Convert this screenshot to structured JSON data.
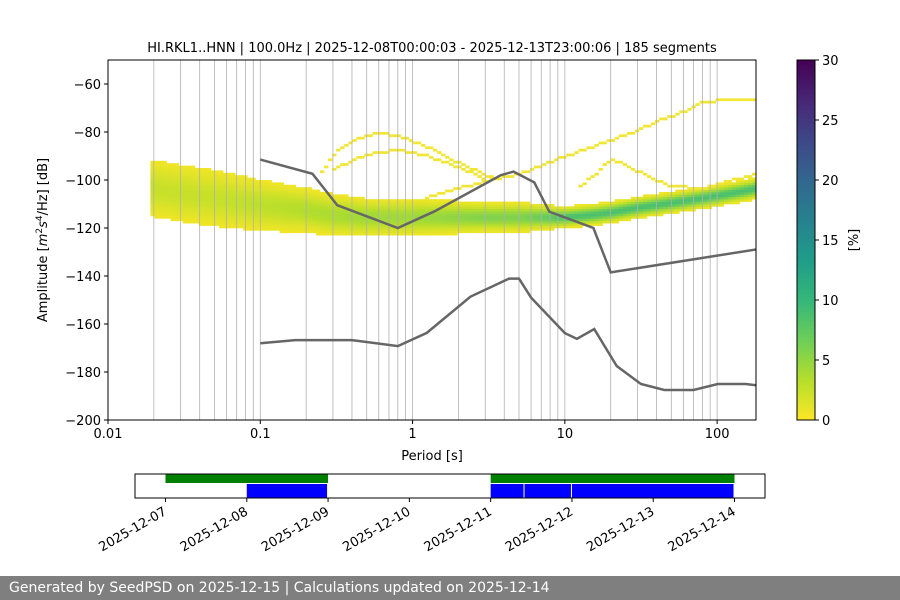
{
  "chart_data": {
    "type": "heatmap",
    "title": "HI.RKL1..HNN | 100.0Hz | 2025-12-08T00:00:03 - 2025-12-13T23:00:06 | 185 segments",
    "xlabel": "Period [s]",
    "ylabel_parts": {
      "pre": "Amplitude [",
      "m": "m",
      "s": "s",
      "hz": "/Hz] [dB]",
      "sup2": "2",
      "sup4": "4"
    },
    "x_scale": "log",
    "xlim": [
      0.01,
      180
    ],
    "ylim": [
      -200,
      -50
    ],
    "x_ticks": [
      0.01,
      0.1,
      1,
      10,
      100
    ],
    "x_tick_labels": [
      "0.01",
      "0.1",
      "1",
      "10",
      "100"
    ],
    "y_ticks": [
      -200,
      -180,
      -160,
      -140,
      -120,
      -100,
      -80,
      -60
    ],
    "y_tick_labels": [
      "−200",
      "−180",
      "−160",
      "−140",
      "−120",
      "−100",
      "−80",
      "−60"
    ],
    "grid": "vertical",
    "colorbar": {
      "label": "[%]",
      "min": 0,
      "max": 30,
      "ticks": [
        0,
        5,
        10,
        15,
        20,
        25,
        30
      ],
      "tick_labels": [
        "0",
        "5",
        "10",
        "15",
        "20",
        "25",
        "30"
      ],
      "colormap": [
        "#fde725",
        "#b5de2b",
        "#6ece58",
        "#35b779",
        "#1f9e89",
        "#26828e",
        "#31688e",
        "#3e4989",
        "#482878",
        "#440154"
      ]
    },
    "mode_curve": [
      [
        0.02,
        -104
      ],
      [
        0.03,
        -106
      ],
      [
        0.05,
        -108
      ],
      [
        0.08,
        -110
      ],
      [
        0.1,
        -111
      ],
      [
        0.2,
        -113
      ],
      [
        0.3,
        -115
      ],
      [
        0.5,
        -116
      ],
      [
        1,
        -116
      ],
      [
        2,
        -116
      ],
      [
        3,
        -116
      ],
      [
        5,
        -116
      ],
      [
        8,
        -116
      ],
      [
        10,
        -116
      ],
      [
        15,
        -115
      ],
      [
        20,
        -114
      ],
      [
        30,
        -112
      ],
      [
        50,
        -110
      ],
      [
        80,
        -108
      ],
      [
        100,
        -107
      ],
      [
        150,
        -105
      ],
      [
        180,
        -104
      ]
    ],
    "spread_curve": [
      [
        0.02,
        7
      ],
      [
        0.03,
        7
      ],
      [
        0.05,
        7
      ],
      [
        0.1,
        6
      ],
      [
        0.2,
        5
      ],
      [
        0.5,
        4
      ],
      [
        1,
        4
      ],
      [
        3,
        3
      ],
      [
        5,
        3
      ],
      [
        10,
        2
      ],
      [
        30,
        2
      ],
      [
        100,
        2
      ],
      [
        180,
        2
      ]
    ],
    "upper_branches": [
      [
        [
          0.25,
          -98
        ],
        [
          0.3,
          -90
        ],
        [
          0.4,
          -84
        ],
        [
          0.6,
          -81
        ],
        [
          0.8,
          -82
        ],
        [
          1.2,
          -86
        ],
        [
          1.8,
          -92
        ],
        [
          2.5,
          -96
        ],
        [
          3.5,
          -100
        ]
      ],
      [
        [
          0.3,
          -96
        ],
        [
          0.5,
          -90
        ],
        [
          0.8,
          -88
        ],
        [
          1.2,
          -90
        ],
        [
          2,
          -95
        ],
        [
          3,
          -100
        ]
      ],
      [
        [
          1.2,
          -108
        ],
        [
          2,
          -104
        ],
        [
          3,
          -101
        ],
        [
          5,
          -98
        ],
        [
          8,
          -93
        ],
        [
          12,
          -89
        ],
        [
          20,
          -84
        ],
        [
          30,
          -80
        ],
        [
          40,
          -76
        ],
        [
          60,
          -72
        ],
        [
          80,
          -68
        ],
        [
          120,
          -67
        ],
        [
          180,
          -67
        ]
      ],
      [
        [
          12,
          -104
        ],
        [
          16,
          -98
        ],
        [
          20,
          -92
        ],
        [
          25,
          -94
        ],
        [
          35,
          -99
        ],
        [
          50,
          -103
        ],
        [
          80,
          -104
        ],
        [
          120,
          -101
        ],
        [
          180,
          -98
        ]
      ]
    ],
    "high_noise_model": [
      [
        0.1,
        -91.5
      ],
      [
        0.22,
        -97.4
      ],
      [
        0.32,
        -110.5
      ],
      [
        0.8,
        -120
      ],
      [
        1.4,
        -113
      ],
      [
        3.8,
        -98
      ],
      [
        4.6,
        -96.5
      ],
      [
        6.3,
        -101
      ],
      [
        7.9,
        -113.2
      ],
      [
        15.4,
        -120
      ],
      [
        20,
        -138.5
      ],
      [
        354.8,
        -126
      ]
    ],
    "low_noise_model": [
      [
        0.1,
        -168
      ],
      [
        0.17,
        -166.7
      ],
      [
        0.4,
        -166.7
      ],
      [
        0.8,
        -169.2
      ],
      [
        1.24,
        -163.7
      ],
      [
        2.4,
        -148.6
      ],
      [
        4.3,
        -141.1
      ],
      [
        5,
        -141.1
      ],
      [
        6,
        -149
      ],
      [
        10,
        -163.8
      ],
      [
        12,
        -166.2
      ],
      [
        15.6,
        -162.1
      ],
      [
        21.9,
        -177.5
      ],
      [
        31.6,
        -185
      ],
      [
        45,
        -187.5
      ],
      [
        70,
        -187.5
      ],
      [
        101,
        -185
      ],
      [
        154,
        -185
      ],
      [
        328,
        -187.5
      ]
    ],
    "availability": {
      "date_ticks": [
        "2025-12-07",
        "2025-12-08",
        "2025-12-09",
        "2025-12-10",
        "2025-12-11",
        "2025-12-12",
        "2025-12-13",
        "2025-12-14"
      ],
      "xlim": [
        "2025-12-06T15:00",
        "2025-12-14T09:00"
      ],
      "coverage_segments": [
        [
          "2025-12-07T00:00",
          "2025-12-09T00:00"
        ],
        [
          "2025-12-11T00:00",
          "2025-12-14T00:00"
        ]
      ],
      "used_segments": [
        [
          "2025-12-08T00:00",
          "2025-12-09T00:00"
        ],
        [
          "2025-12-11T00:00",
          "2025-12-11T10:00"
        ],
        [
          "2025-12-11T10:00",
          "2025-12-12T00:00"
        ],
        [
          "2025-12-12T00:00",
          "2025-12-14T00:00"
        ]
      ],
      "coverage_color": "#008000",
      "used_color": "#0000ff"
    }
  },
  "footer": {
    "text": "Generated by SeedPSD on 2025-12-15 | Calculations updated on 2025-12-14",
    "bg": "#7f7f7f"
  }
}
